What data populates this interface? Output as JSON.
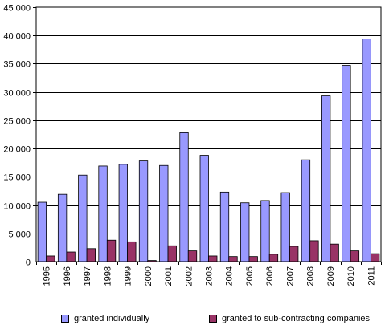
{
  "chart_data": {
    "type": "bar",
    "title": "",
    "xlabel": "",
    "ylabel": "",
    "ylim": [
      0,
      45000
    ],
    "yticks": [
      0,
      5000,
      10000,
      15000,
      20000,
      25000,
      30000,
      35000,
      40000,
      45000
    ],
    "ytick_labels": [
      "0",
      "5 000",
      "10 000",
      "15 000",
      "20 000",
      "25 000",
      "30 000",
      "35 000",
      "40 000",
      "45 000"
    ],
    "grid": true,
    "legend_position": "bottom",
    "categories": [
      "1995",
      "1996",
      "1997",
      "1998",
      "1999",
      "2000",
      "2001",
      "2002",
      "2003",
      "2004",
      "2005",
      "2006",
      "2007",
      "2008",
      "2009",
      "2010",
      "2011"
    ],
    "series": [
      {
        "name": "granted individually",
        "color": "#9999ff",
        "values": [
          10500,
          11900,
          15300,
          16900,
          17200,
          17800,
          17000,
          22800,
          18800,
          12300,
          10400,
          10800,
          12200,
          18000,
          29300,
          34700,
          39400
        ]
      },
      {
        "name": "granted to sub-contracting companies",
        "color": "#993366",
        "values": [
          1000,
          1700,
          2300,
          3800,
          3500,
          200,
          2800,
          1900,
          1000,
          900,
          900,
          1300,
          2700,
          3700,
          3100,
          1900,
          1400
        ]
      }
    ]
  }
}
